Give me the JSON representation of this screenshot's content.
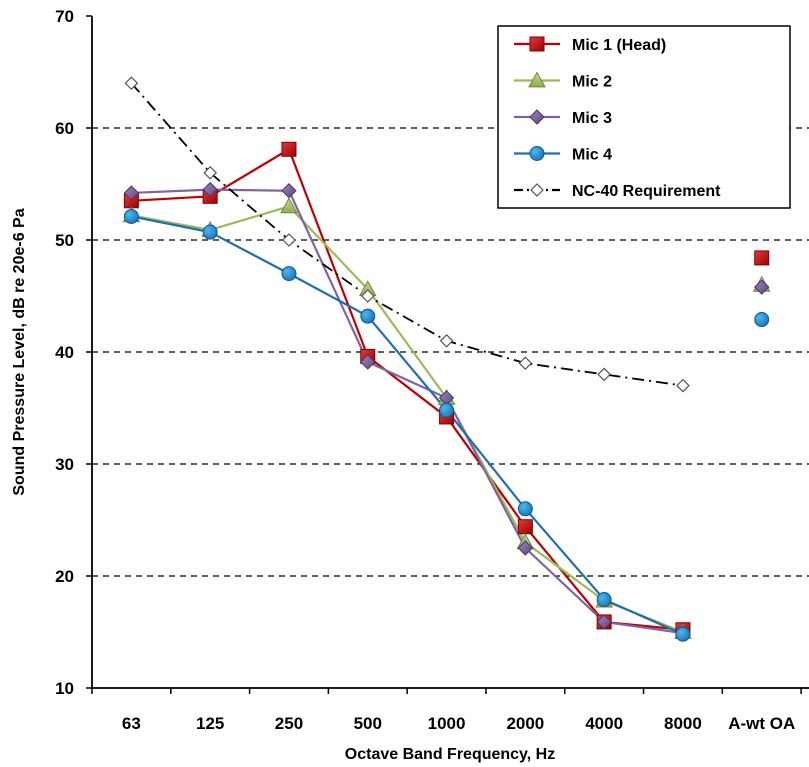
{
  "chart_data": {
    "type": "line",
    "xlabel": "Octave Band Frequency, Hz",
    "ylabel": "Sound Pressure Level, dB re 20e-6 Pa",
    "categories": [
      "63",
      "125",
      "250",
      "500",
      "1000",
      "2000",
      "4000",
      "8000",
      "A-wt OA"
    ],
    "ylim": [
      10,
      70
    ],
    "yticks": [
      10,
      20,
      30,
      40,
      50,
      60,
      70
    ],
    "grid": "horizontal dashed",
    "legend_position": "top-right",
    "series": [
      {
        "name": "Mic 1 (Head)",
        "color": "#c00000",
        "marker": "square",
        "lineColor": "#c00000",
        "values": [
          53.5,
          53.9,
          58.1,
          39.6,
          34.2,
          24.4,
          15.9,
          15.2,
          48.4
        ]
      },
      {
        "name": "Mic 2",
        "color": "#9bbb59",
        "marker": "triangle",
        "lineColor": "#9bbb59",
        "values": [
          52.2,
          50.9,
          53.0,
          45.6,
          35.9,
          23.0,
          17.8,
          15.0,
          46.0
        ]
      },
      {
        "name": "Mic 3",
        "color": "#8064a2",
        "marker": "diamond",
        "lineColor": "#8064a2",
        "values": [
          54.2,
          54.5,
          54.4,
          39.1,
          35.9,
          22.5,
          15.9,
          14.9,
          45.8
        ]
      },
      {
        "name": "Mic 4",
        "color": "#1f8dcf",
        "marker": "circle",
        "lineColor": "#1f6fae",
        "values": [
          52.1,
          50.7,
          47.0,
          43.2,
          34.8,
          26.0,
          17.9,
          14.8,
          42.9
        ]
      },
      {
        "name": "NC-40 Requirement",
        "color": "#000000",
        "marker": "open-diamond",
        "lineColor": "#000000",
        "dash": "dash-dot",
        "values": [
          64.0,
          56.0,
          50.0,
          45.0,
          41.0,
          39.0,
          38.0,
          37.0,
          null
        ]
      }
    ]
  }
}
